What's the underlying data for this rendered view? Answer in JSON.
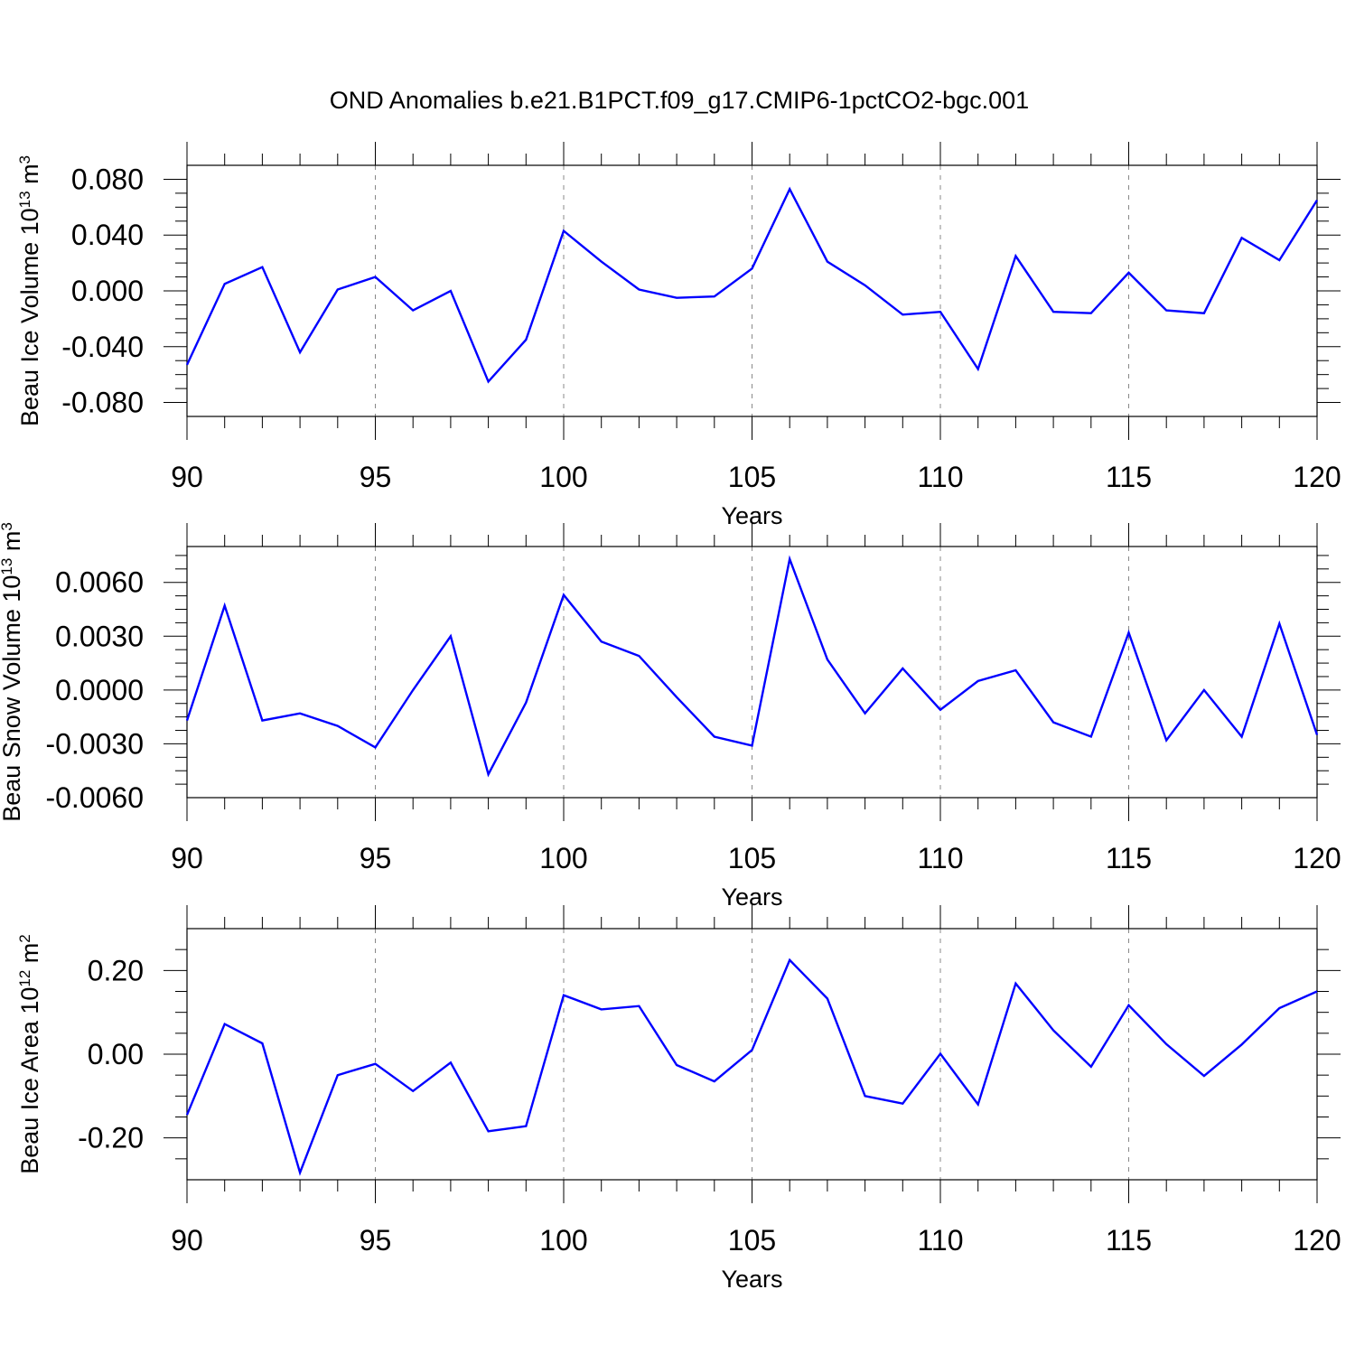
{
  "figure": {
    "title": "OND Anomalies b.e21.B1PCT.f09_g17.CMIP6-1pctCO2-bgc.001"
  },
  "chart_data": [
    {
      "type": "line",
      "title": "",
      "xlabel": "Years",
      "ylabel": "Beau Ice Volume 10",
      "ylabel_exponent": "13",
      "ylabel_unit": " m",
      "ylabel_unit_exponent": "3",
      "xlim": [
        90,
        120
      ],
      "ylim": [
        -0.09,
        0.09
      ],
      "x_ticks": [
        90,
        95,
        100,
        105,
        110,
        115,
        120
      ],
      "x_tick_labels": [
        "90",
        "95",
        "100",
        "105",
        "110",
        "115",
        "120"
      ],
      "y_ticks": [
        -0.08,
        -0.04,
        0.0,
        0.04,
        0.08
      ],
      "y_tick_labels": [
        "-0.080",
        "-0.040",
        "0.000",
        "0.040",
        "0.080"
      ],
      "y_minor_step": 0.01,
      "line_color": "#0000ff",
      "x": [
        90,
        91,
        92,
        93,
        94,
        95,
        96,
        97,
        98,
        99,
        100,
        101,
        102,
        103,
        104,
        105,
        106,
        107,
        108,
        109,
        110,
        111,
        112,
        113,
        114,
        115,
        116,
        117,
        118,
        119,
        120
      ],
      "values": [
        -0.053,
        0.005,
        0.017,
        -0.044,
        0.001,
        0.01,
        -0.014,
        0.0,
        -0.065,
        -0.035,
        0.043,
        0.021,
        0.001,
        -0.005,
        -0.004,
        0.016,
        0.073,
        0.021,
        0.004,
        -0.017,
        -0.015,
        -0.056,
        0.025,
        -0.015,
        -0.016,
        0.013,
        -0.014,
        -0.016,
        0.038,
        0.022,
        0.065
      ]
    },
    {
      "type": "line",
      "title": "",
      "xlabel": "Years",
      "ylabel": "Beau Snow Volume 10",
      "ylabel_exponent": "13",
      "ylabel_unit": " m",
      "ylabel_unit_exponent": "3",
      "xlim": [
        90,
        120
      ],
      "ylim": [
        -0.006,
        0.008
      ],
      "x_ticks": [
        90,
        95,
        100,
        105,
        110,
        115,
        120
      ],
      "x_tick_labels": [
        "90",
        "95",
        "100",
        "105",
        "110",
        "115",
        "120"
      ],
      "y_ticks": [
        -0.006,
        -0.003,
        0.0,
        0.003,
        0.006
      ],
      "y_tick_labels": [
        "-0.0060",
        "-0.0030",
        "0.0000",
        "0.0030",
        "0.0060"
      ],
      "y_minor_step": 0.00075,
      "line_color": "#0000ff",
      "x": [
        90,
        91,
        92,
        93,
        94,
        95,
        96,
        97,
        98,
        99,
        100,
        101,
        102,
        103,
        104,
        105,
        106,
        107,
        108,
        109,
        110,
        111,
        112,
        113,
        114,
        115,
        116,
        117,
        118,
        119,
        120
      ],
      "values": [
        -0.0017,
        0.0047,
        -0.0017,
        -0.0013,
        -0.002,
        -0.0032,
        -0.0,
        0.003,
        -0.0047,
        -0.0007,
        0.0053,
        0.0027,
        0.0019,
        -0.0004,
        -0.0026,
        -0.0031,
        0.0073,
        0.0017,
        -0.0013,
        0.0012,
        -0.0011,
        0.0005,
        0.0011,
        -0.0018,
        -0.0026,
        0.0032,
        -0.0028,
        0.0,
        -0.0026,
        0.0037,
        -0.0025
      ]
    },
    {
      "type": "line",
      "title": "",
      "xlabel": "Years",
      "ylabel": "Beau Ice Area 10",
      "ylabel_exponent": "12",
      "ylabel_unit": " m",
      "ylabel_unit_exponent": "2",
      "xlim": [
        90,
        120
      ],
      "ylim": [
        -0.3,
        0.3
      ],
      "x_ticks": [
        90,
        95,
        100,
        105,
        110,
        115,
        120
      ],
      "x_tick_labels": [
        "90",
        "95",
        "100",
        "105",
        "110",
        "115",
        "120"
      ],
      "y_ticks": [
        -0.2,
        0.0,
        0.2
      ],
      "y_tick_labels": [
        "-0.20",
        "0.00",
        "0.20"
      ],
      "y_minor_step": 0.05,
      "line_color": "#0000ff",
      "x": [
        90,
        91,
        92,
        93,
        94,
        95,
        96,
        97,
        98,
        99,
        100,
        101,
        102,
        103,
        104,
        105,
        106,
        107,
        108,
        109,
        110,
        111,
        112,
        113,
        114,
        115,
        116,
        117,
        118,
        119,
        120
      ],
      "values": [
        -0.145,
        0.072,
        0.026,
        -0.283,
        -0.05,
        -0.023,
        -0.088,
        -0.02,
        -0.184,
        -0.172,
        0.141,
        0.107,
        0.115,
        -0.026,
        -0.065,
        0.01,
        0.225,
        0.133,
        -0.1,
        -0.118,
        0.001,
        -0.12,
        0.169,
        0.057,
        -0.03,
        0.117,
        0.024,
        -0.052,
        0.023,
        0.11,
        0.15
      ]
    }
  ]
}
